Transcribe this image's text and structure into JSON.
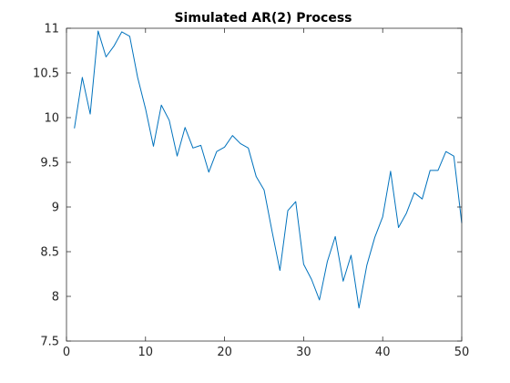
{
  "chart_data": {
    "type": "line",
    "title": "Simulated AR(2) Process",
    "xlabel": "",
    "ylabel": "",
    "xlim": [
      0,
      50
    ],
    "ylim": [
      7.5,
      11
    ],
    "xticks": [
      0,
      10,
      20,
      30,
      40,
      50
    ],
    "yticks": [
      7.5,
      8,
      8.5,
      9,
      9.5,
      10,
      10.5,
      11
    ],
    "grid": false,
    "legend": "none",
    "line_color": "#0072bd",
    "series": [
      {
        "x": [
          1,
          2,
          3,
          4,
          5,
          6,
          7,
          8,
          9,
          10,
          11,
          12,
          13,
          14,
          15,
          16,
          17,
          18,
          19,
          20,
          21,
          22,
          23,
          24,
          25,
          26,
          27,
          28,
          29,
          30,
          31,
          32,
          33,
          34,
          35,
          36,
          37,
          38,
          39,
          40,
          41,
          42,
          43,
          44,
          45,
          46,
          47,
          48,
          49,
          50
        ],
        "values": [
          9.88,
          10.45,
          10.04,
          10.97,
          10.68,
          10.8,
          10.96,
          10.91,
          10.45,
          10.1,
          9.68,
          10.14,
          9.97,
          9.57,
          9.89,
          9.66,
          9.69,
          9.39,
          9.62,
          9.67,
          9.8,
          9.71,
          9.66,
          9.34,
          9.19,
          8.73,
          8.29,
          8.96,
          9.06,
          8.36,
          8.19,
          7.96,
          8.39,
          8.67,
          8.17,
          8.46,
          7.87,
          8.35,
          8.66,
          8.89,
          9.4,
          8.77,
          8.93,
          9.16,
          9.09,
          9.41,
          9.41,
          9.62,
          9.57,
          8.82
        ]
      }
    ]
  }
}
